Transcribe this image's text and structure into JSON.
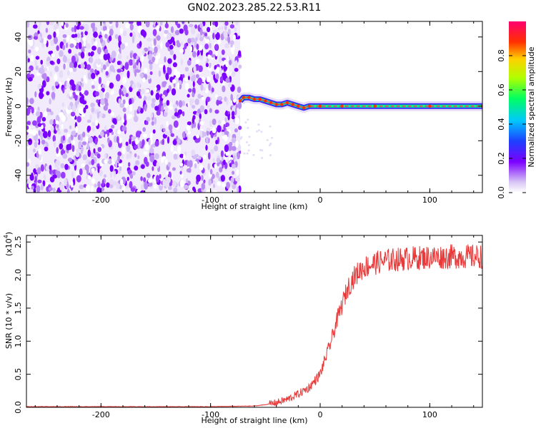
{
  "title": "GN02.2023.285.22.53.R11",
  "chart_data": [
    {
      "type": "heatmap",
      "title": "GN02.2023.285.22.53.R11",
      "xlabel": "Height of straight line (km)",
      "ylabel": "Frequency (Hz)",
      "xlim": [
        -268,
        148
      ],
      "ylim": [
        -50,
        49
      ],
      "xticks": [
        "-200",
        "-100",
        "0",
        "100"
      ],
      "yticks": [
        "40",
        "20",
        "0",
        "-20",
        "-40"
      ],
      "noise_region_x": [
        -268,
        -73
      ],
      "signal_track": {
        "x": [
          -73,
          -70,
          -65,
          -60,
          -55,
          -50,
          -45,
          -40,
          -35,
          -30,
          -25,
          -20,
          -15,
          -10,
          0,
          20,
          50,
          100,
          148
        ],
        "frequency": [
          3,
          5,
          5,
          4,
          4,
          3,
          2,
          1,
          1,
          2,
          1,
          0,
          -1,
          0,
          0,
          0,
          0,
          0,
          0
        ]
      },
      "colorbar": {
        "label": "Normalized spectral amplitude",
        "range": [
          0.0,
          1.0
        ],
        "ticks": [
          "0.0",
          "0.2",
          "0.4",
          "0.6",
          "0.8"
        ],
        "colormap": "rainbow"
      }
    },
    {
      "type": "line",
      "xlabel": "Height of straight line (km)",
      "ylabel": "SNR (10 * v/v)",
      "y_multiplier": "(x10",
      "y_multiplier_exp": "4",
      "y_multiplier_close": ")",
      "xlim": [
        -268,
        148
      ],
      "ylim": [
        0.0,
        2.6
      ],
      "xticks": [
        "-200",
        "-100",
        "0",
        "100"
      ],
      "yticks": [
        "0.0",
        "0.5",
        "1.0",
        "1.5",
        "2.0",
        "2.5"
      ],
      "series": [
        {
          "color": "#e83a3a",
          "x": [
            -268,
            -200,
            -100,
            -60,
            -50,
            -40,
            -30,
            -20,
            -10,
            0,
            5,
            10,
            15,
            20,
            25,
            30,
            35,
            40,
            50,
            60,
            80,
            100,
            120,
            148
          ],
          "y": [
            0.01,
            0.01,
            0.01,
            0.02,
            0.04,
            0.07,
            0.12,
            0.2,
            0.3,
            0.5,
            0.75,
            1.0,
            1.3,
            1.55,
            1.8,
            1.95,
            2.05,
            2.12,
            2.18,
            2.22,
            2.25,
            2.27,
            2.28,
            2.28
          ]
        }
      ]
    }
  ]
}
